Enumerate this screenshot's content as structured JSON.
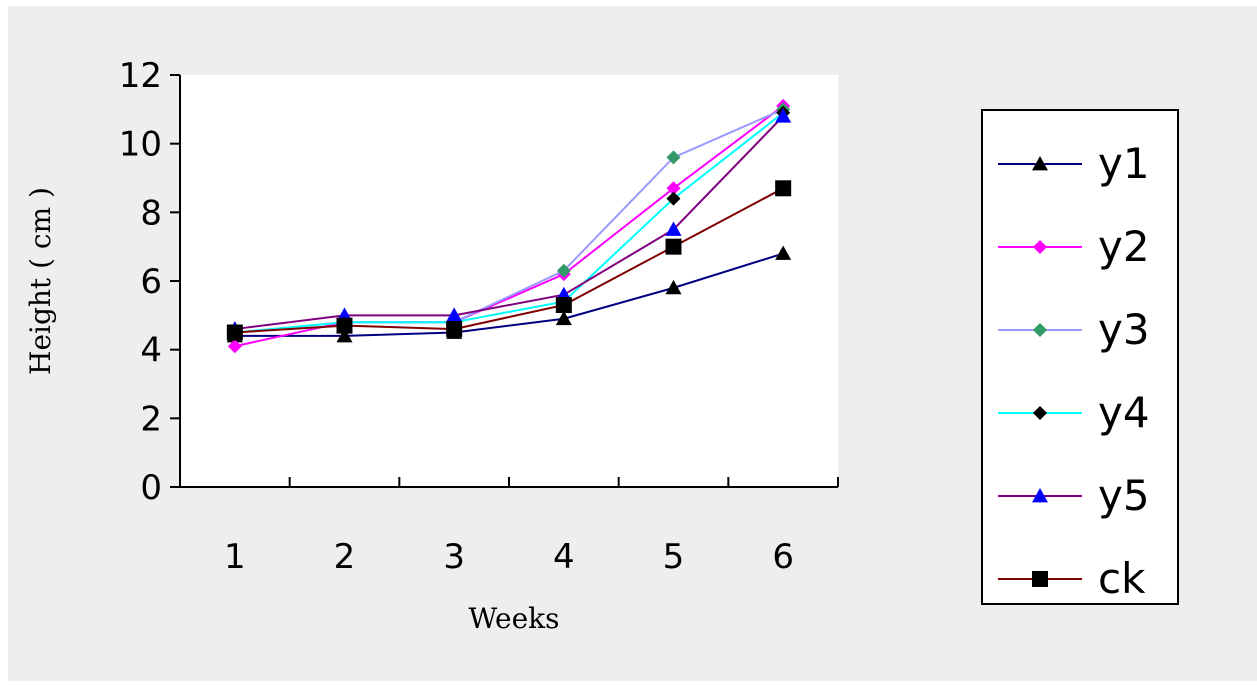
{
  "chart_data": {
    "type": "line",
    "title": "",
    "xlabel": "Weeks",
    "ylabel": "Height ( cm )",
    "categories": [
      "1",
      "2",
      "3",
      "4",
      "5",
      "6"
    ],
    "ylim": [
      0,
      12
    ],
    "yticks": [
      "0",
      "2",
      "4",
      "6",
      "8",
      "10",
      "12"
    ],
    "grid": false,
    "legend_position": "right",
    "series": [
      {
        "name": "y1",
        "color": "#000080",
        "marker": "triangle",
        "marker_color": "#000000",
        "values": [
          4.4,
          4.4,
          4.5,
          4.9,
          5.8,
          6.8
        ]
      },
      {
        "name": "y2",
        "color": "#ff00ff",
        "marker": "diamond",
        "marker_color": "#ff00ff",
        "values": [
          4.1,
          4.8,
          4.8,
          6.2,
          8.7,
          11.1
        ]
      },
      {
        "name": "y3",
        "color": "#9999ff",
        "marker": "diamond",
        "marker_color": "#339966",
        "values": [
          4.5,
          4.8,
          4.8,
          6.3,
          9.6,
          11.0
        ]
      },
      {
        "name": "y4",
        "color": "#00ffff",
        "marker": "diamond",
        "marker_color": "#000000",
        "values": [
          4.5,
          4.8,
          4.8,
          5.4,
          8.4,
          10.9
        ]
      },
      {
        "name": "y5",
        "color": "#800080",
        "marker": "triangle",
        "marker_color": "#0000ff",
        "values": [
          4.6,
          5.0,
          5.0,
          5.6,
          7.5,
          10.8
        ]
      },
      {
        "name": "ck",
        "color": "#800000",
        "marker": "square",
        "marker_color": "#000000",
        "values": [
          4.5,
          4.7,
          4.6,
          5.3,
          7.0,
          8.7
        ]
      }
    ]
  }
}
